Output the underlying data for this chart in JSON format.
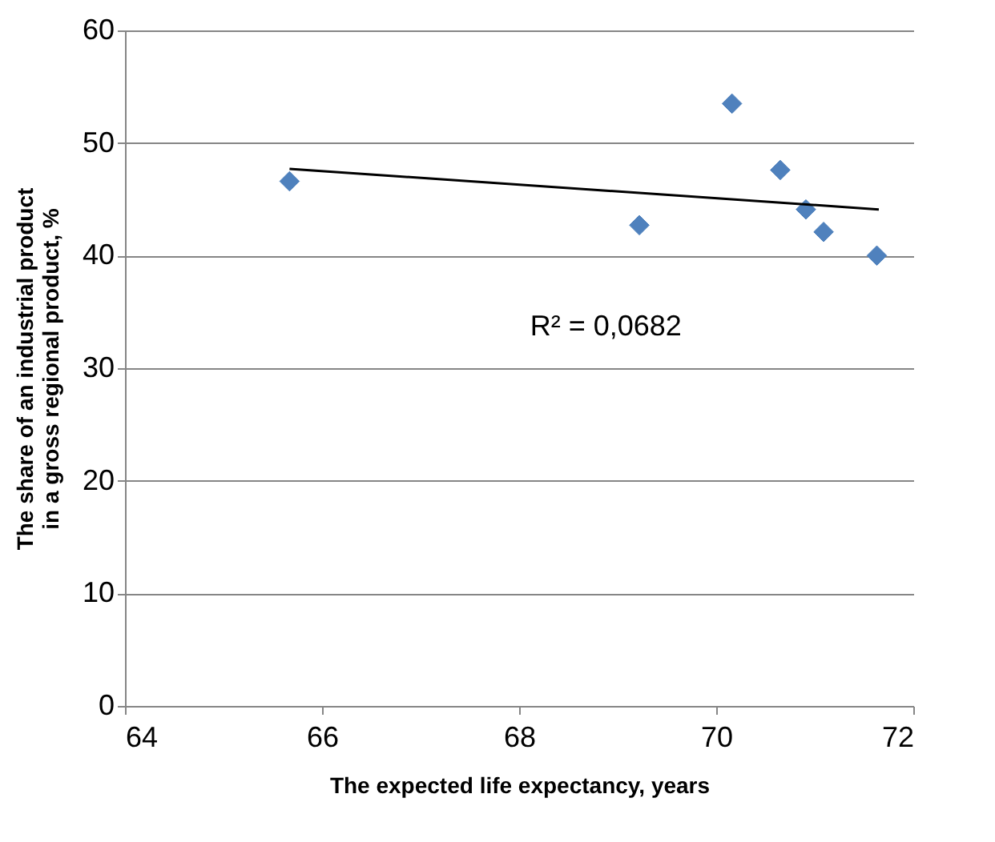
{
  "chart_data": {
    "type": "scatter",
    "xlabel": "The expected life expectancy, years",
    "ylabel": "The share of an industrial product in a gross regional product, %",
    "series": [
      {
        "marker": "diamond",
        "color": "#4f81bd",
        "x": [
          65.67,
          69.22,
          70.16,
          70.65,
          70.91,
          71.09,
          71.63
        ],
        "values": [
          46.6,
          42.7,
          53.5,
          47.6,
          44.1,
          42.1,
          40.0
        ]
      },
      {
        "type": "line",
        "color": "#000000",
        "x": [
          65.67,
          71.65
        ],
        "values": [
          47.7,
          44.1
        ]
      }
    ],
    "annotations": [
      "R² = 0,0682"
    ],
    "xlim": [
      64,
      72
    ],
    "xticks": [
      64,
      66,
      68,
      70,
      72
    ],
    "ylim": [
      0,
      60
    ],
    "yticks": [
      0,
      10,
      20,
      30,
      40,
      50,
      60
    ],
    "grid": "y"
  }
}
